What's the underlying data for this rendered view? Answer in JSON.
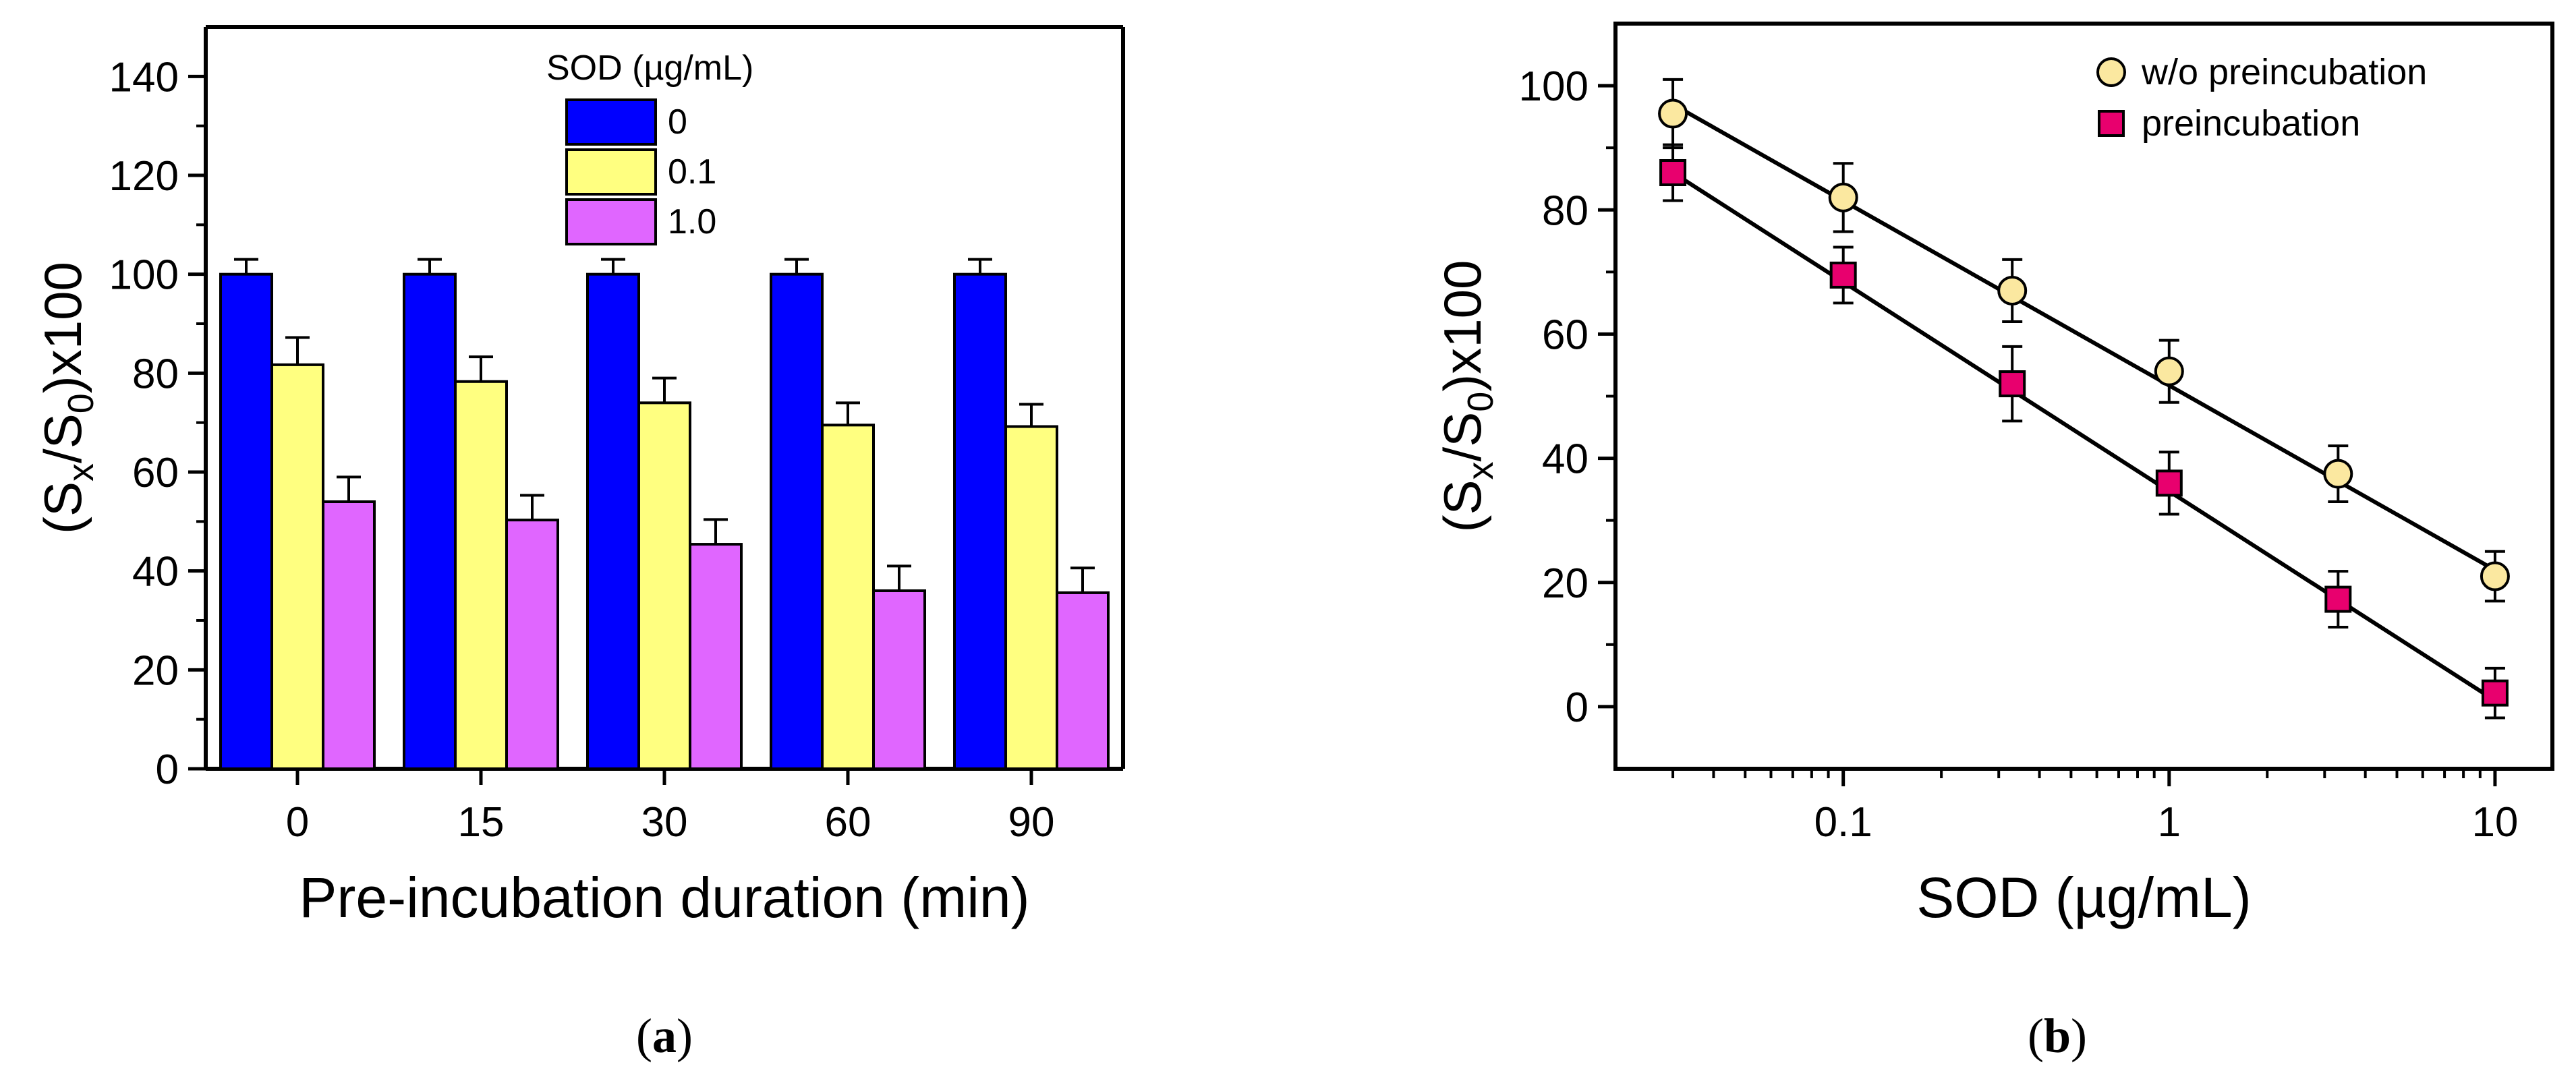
{
  "chart_data": [
    {
      "type": "bar",
      "panel_label": "a",
      "xlabel": "Pre-incubation duration (min)",
      "ylabel_parts": [
        "(S",
        "x",
        "/S",
        "0",
        ")x100"
      ],
      "ylim": [
        0,
        150
      ],
      "yticks": [
        0,
        20,
        40,
        60,
        80,
        100,
        120,
        140
      ],
      "categories": [
        "0",
        "15",
        "30",
        "60",
        "90"
      ],
      "legend_title": "SOD (µg/mL)",
      "series": [
        {
          "name": "0",
          "color": "#0000ff",
          "values": [
            100,
            100,
            100,
            100,
            100
          ],
          "errors": [
            3,
            3,
            3,
            3,
            3
          ]
        },
        {
          "name": "0.1",
          "color": "#ffff80",
          "values": [
            81.7,
            78.3,
            74,
            69.5,
            69.2
          ],
          "errors": [
            5.5,
            5,
            5,
            4.5,
            4.5
          ]
        },
        {
          "name": "1.0",
          "color": "#e066ff",
          "values": [
            54,
            50.3,
            45.4,
            36,
            35.6
          ],
          "errors": [
            5,
            5,
            5,
            5,
            5
          ]
        }
      ]
    },
    {
      "type": "scatter",
      "panel_label": "b",
      "xlabel": "SOD (µg/mL)",
      "ylabel_parts": [
        "(S",
        "x",
        "/S",
        "0",
        ")x100"
      ],
      "xscale": "log",
      "xlim": [
        0.02,
        15
      ],
      "ylim": [
        -10,
        110
      ],
      "xticks": [
        0.1,
        1,
        10
      ],
      "xtick_labels": [
        "0.1",
        "1",
        "10"
      ],
      "yticks": [
        0,
        20,
        40,
        60,
        80,
        100
      ],
      "series": [
        {
          "name": "w/o preincubation",
          "marker": "circle",
          "color": "#fbe8a0",
          "x": [
            0.03,
            0.1,
            0.33,
            1,
            3.3,
            10
          ],
          "y": [
            95.5,
            82,
            67,
            54,
            37.5,
            21
          ],
          "errors": [
            5.5,
            5.5,
            5,
            5,
            4.5,
            4
          ]
        },
        {
          "name": "preincubation",
          "marker": "square",
          "color": "#e8006e",
          "x": [
            0.03,
            0.1,
            0.33,
            1,
            3.3,
            10
          ],
          "y": [
            86,
            69.5,
            52,
            36,
            17.3,
            2.2
          ],
          "errors": [
            4.5,
            4.5,
            6,
            5,
            4.5,
            4
          ]
        }
      ],
      "fit_lines": [
        {
          "series": "w/o preincubation",
          "x": [
            0.03,
            10
          ],
          "y": [
            97,
            22
          ]
        },
        {
          "series": "preincubation",
          "x": [
            0.03,
            10
          ],
          "y": [
            86,
            1
          ]
        }
      ],
      "legend_position": "top-right"
    }
  ]
}
